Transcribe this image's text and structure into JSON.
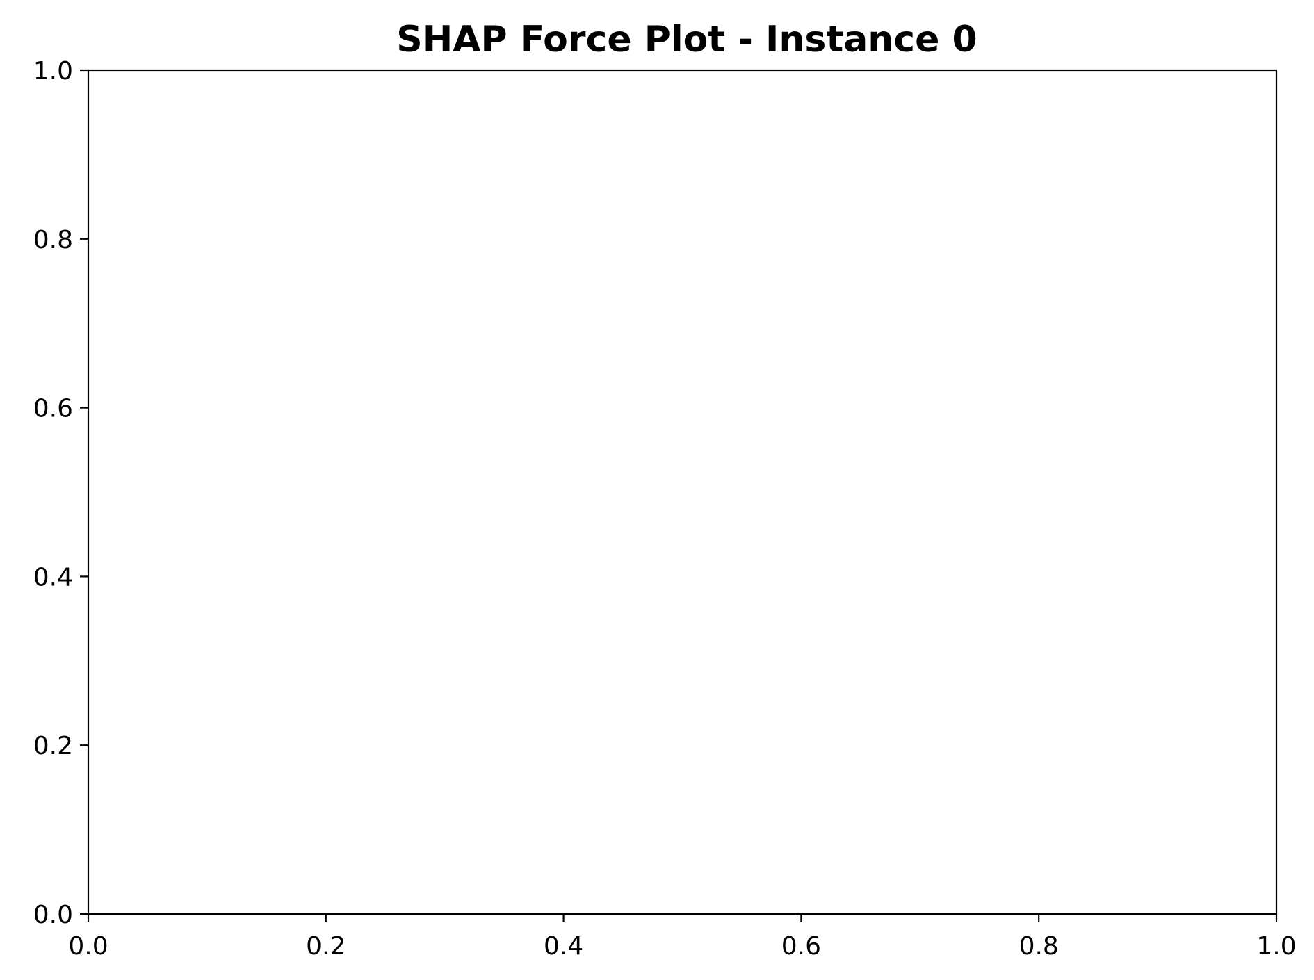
{
  "chart_data": {
    "type": "bar",
    "title": "SHAP Force Plot - Instance 0",
    "xlabel": "",
    "ylabel": "",
    "xlim": [
      0.0,
      1.0
    ],
    "ylim": [
      0.0,
      1.0
    ],
    "x_ticks": [
      "0.0",
      "0.2",
      "0.4",
      "0.6",
      "0.8",
      "1.0"
    ],
    "y_ticks": [
      "0.0",
      "0.2",
      "0.4",
      "0.6",
      "0.8",
      "1.0"
    ],
    "x_tick_values": [
      0.0,
      0.2,
      0.4,
      0.6,
      0.8,
      1.0
    ],
    "y_tick_values": [
      0.0,
      0.2,
      0.4,
      0.6,
      0.8,
      1.0
    ],
    "series": [],
    "grid": false,
    "legend": "none"
  },
  "colors": {
    "axis": "#000000",
    "text": "#000000",
    "background": "#ffffff"
  }
}
